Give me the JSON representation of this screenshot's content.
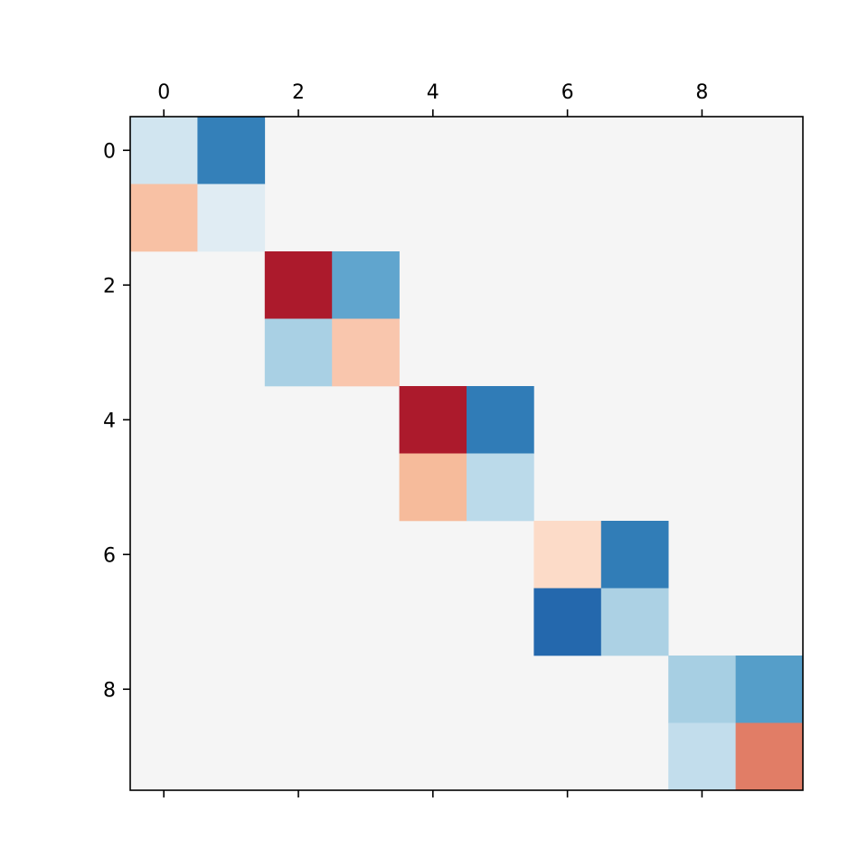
{
  "chart_data": {
    "type": "heatmap",
    "title": "",
    "xlabel": "",
    "ylabel": "",
    "colormap": "RdBu",
    "xlim": [
      -0.5,
      9.5
    ],
    "ylim": [
      9.5,
      -0.5
    ],
    "x_ticks": [
      0,
      2,
      4,
      6,
      8
    ],
    "y_ticks": [
      0,
      2,
      4,
      6,
      8
    ],
    "x_tick_labels": [
      "0",
      "2",
      "4",
      "6",
      "8"
    ],
    "y_tick_labels": [
      "0",
      "2",
      "4",
      "6",
      "8"
    ],
    "x_axis_position": "top",
    "grid": false,
    "background_color": "#f5f5f5",
    "matrix": [
      [
        0.2,
        0.8,
        0,
        0,
        0,
        0,
        0,
        0,
        0,
        0
      ],
      [
        -0.3,
        0.1,
        0,
        0,
        0,
        0,
        0,
        0,
        0,
        0
      ],
      [
        0,
        0,
        -0.95,
        0.6,
        0,
        0,
        0,
        0,
        0,
        0
      ],
      [
        0,
        0,
        0.35,
        -0.25,
        0,
        0,
        0,
        0,
        0,
        0
      ],
      [
        0,
        0,
        0,
        0,
        -0.95,
        0.8,
        0,
        0,
        0,
        0
      ],
      [
        0,
        0,
        0,
        0,
        -0.3,
        0.27,
        0,
        0,
        0,
        0
      ],
      [
        0,
        0,
        0,
        0,
        0,
        0,
        -0.15,
        0.8,
        0,
        0
      ],
      [
        0,
        0,
        0,
        0,
        0,
        0,
        0.88,
        0.33,
        0,
        0
      ],
      [
        0,
        0,
        0,
        0,
        0,
        0,
        0,
        0,
        0.35,
        0.65
      ],
      [
        0,
        0,
        0,
        0,
        0,
        0,
        0,
        0,
        0.25,
        -0.55
      ]
    ],
    "cell_colors": [
      [
        "#d1e5f0",
        "#3480b9",
        null,
        null,
        null,
        null,
        null,
        null,
        null,
        null
      ],
      [
        "#f8c1a4",
        "#e0ecf3",
        null,
        null,
        null,
        null,
        null,
        null,
        null,
        null
      ],
      [
        null,
        null,
        "#ac1a2c",
        "#60a5ce",
        null,
        null,
        null,
        null,
        null,
        null
      ],
      [
        null,
        null,
        "#a9d0e4",
        "#f9c6ad",
        null,
        null,
        null,
        null,
        null,
        null
      ],
      [
        null,
        null,
        null,
        null,
        "#ac1a2c",
        "#307cb7",
        null,
        null,
        null,
        null
      ],
      [
        null,
        null,
        null,
        null,
        "#f6bb9b",
        "#bbdaea",
        null,
        null,
        null,
        null
      ],
      [
        null,
        null,
        null,
        null,
        null,
        null,
        "#fcdbc8",
        "#317db7",
        null,
        null
      ],
      [
        null,
        null,
        null,
        null,
        null,
        null,
        "#2468ad",
        "#acd1e4",
        null,
        null
      ],
      [
        null,
        null,
        null,
        null,
        null,
        null,
        null,
        null,
        "#a7cfe3",
        "#559ec9"
      ],
      [
        null,
        null,
        null,
        null,
        null,
        null,
        null,
        null,
        "#c2ddec",
        "#e17d66"
      ]
    ]
  }
}
